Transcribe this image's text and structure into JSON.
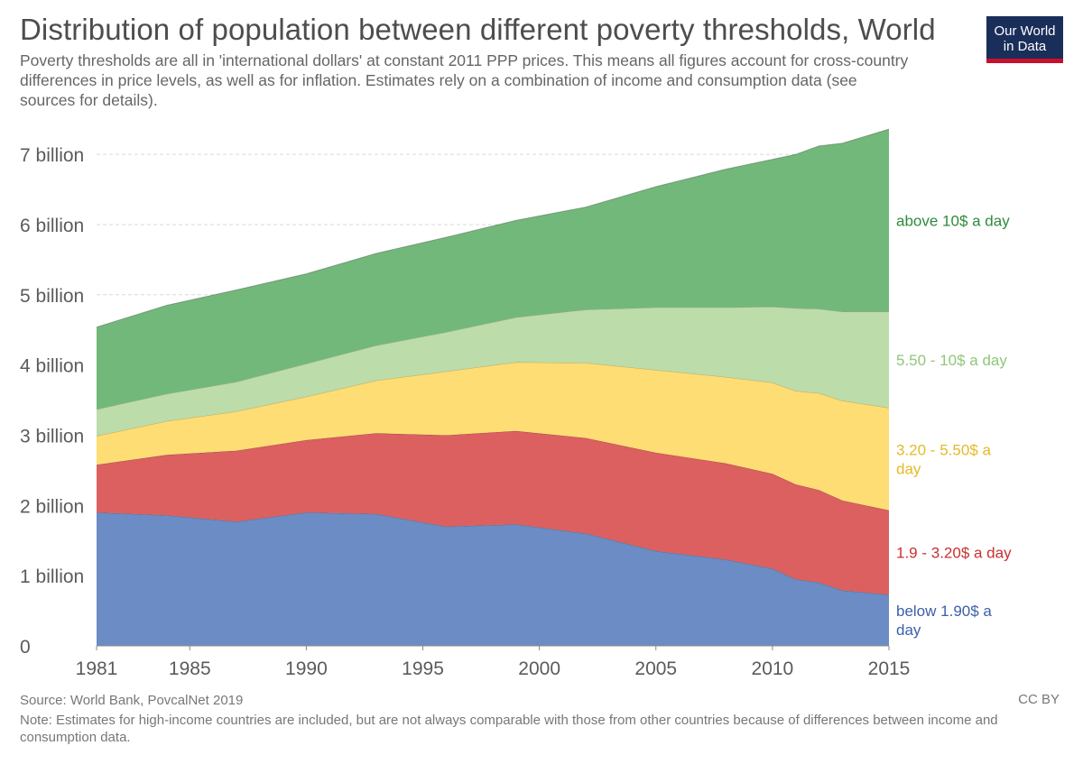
{
  "header": {
    "title": "Distribution of population between different poverty thresholds, World",
    "subtitle": "Poverty thresholds are all in 'international dollars' at constant 2011 PPP prices. This means all figures account for cross-country differences in price levels, as well as for inflation. Estimates rely on a combination of income and consumption data (see sources for details).",
    "logo_line1": "Our World",
    "logo_line2": "in Data"
  },
  "footer": {
    "source": "Source: World Bank, PovcalNet 2019",
    "note": "Note: Estimates for high-income countries are included, but are not always comparable with those from other countries because of differences between income and consumption data.",
    "license": "CC BY"
  },
  "chart_data": {
    "type": "area",
    "stacked": true,
    "title": "Distribution of population between different poverty thresholds, World",
    "xlabel": "",
    "ylabel": "",
    "x": [
      1981,
      1984,
      1987,
      1990,
      1993,
      1996,
      1999,
      2002,
      2005,
      2008,
      2010,
      2011,
      2012,
      2013,
      2015
    ],
    "x_ticks": [
      "1981",
      "1985",
      "1990",
      "1995",
      "2000",
      "2005",
      "2010",
      "2015"
    ],
    "x_tick_values": [
      1981,
      1985,
      1990,
      1995,
      2000,
      2005,
      2010,
      2015
    ],
    "y_ticks": [
      "0",
      "1 billion",
      "2 billion",
      "3 billion",
      "4 billion",
      "5 billion",
      "6 billion",
      "7 billion"
    ],
    "y_tick_values": [
      0,
      1,
      2,
      3,
      4,
      5,
      6,
      7
    ],
    "ylim": [
      0,
      7.4
    ],
    "xlim": [
      1981,
      2015
    ],
    "unit": "billion people",
    "grid": true,
    "series": [
      {
        "name": "below 1.90$ a day",
        "color": "#6b8cc4",
        "label_color": "#3b5fa8",
        "values": [
          1.9,
          1.86,
          1.77,
          1.9,
          1.88,
          1.7,
          1.73,
          1.6,
          1.35,
          1.23,
          1.1,
          0.95,
          0.9,
          0.79,
          0.73
        ]
      },
      {
        "name": "1.9 - 3.20$ a day",
        "color": "#dc6060",
        "label_color": "#c93030",
        "values": [
          0.68,
          0.86,
          1.01,
          1.03,
          1.15,
          1.3,
          1.33,
          1.36,
          1.4,
          1.37,
          1.35,
          1.35,
          1.32,
          1.28,
          1.2
        ]
      },
      {
        "name": "3.20 - 5.50$ a day",
        "color": "#fddd74",
        "label_color": "#e3ba28",
        "values": [
          0.41,
          0.48,
          0.56,
          0.62,
          0.75,
          0.91,
          0.98,
          1.07,
          1.18,
          1.23,
          1.3,
          1.33,
          1.38,
          1.42,
          1.46
        ]
      },
      {
        "name": "5.50 - 10$ a day",
        "color": "#bcdcaa",
        "label_color": "#90c67a",
        "values": [
          0.38,
          0.39,
          0.42,
          0.47,
          0.5,
          0.56,
          0.64,
          0.76,
          0.89,
          0.99,
          1.08,
          1.18,
          1.2,
          1.27,
          1.37
        ]
      },
      {
        "name": "above 10$ a day",
        "color": "#72b87a",
        "label_color": "#2f8a3a",
        "values": [
          1.17,
          1.26,
          1.31,
          1.28,
          1.31,
          1.35,
          1.38,
          1.46,
          1.72,
          1.97,
          2.1,
          2.19,
          2.32,
          2.4,
          2.6
        ]
      }
    ],
    "series_labels": [
      {
        "series": "above 10$ a day",
        "lines": [
          "above 10$ a day"
        ]
      },
      {
        "series": "5.50 - 10$ a day",
        "lines": [
          "5.50 - 10$ a day"
        ]
      },
      {
        "series": "3.20 - 5.50$ a day",
        "lines": [
          "3.20 - 5.50$ a",
          "day"
        ]
      },
      {
        "series": "1.9 - 3.20$ a day",
        "lines": [
          "1.9 - 3.20$ a day"
        ]
      },
      {
        "series": "below 1.90$ a day",
        "lines": [
          "below 1.90$ a",
          "day"
        ]
      }
    ]
  }
}
